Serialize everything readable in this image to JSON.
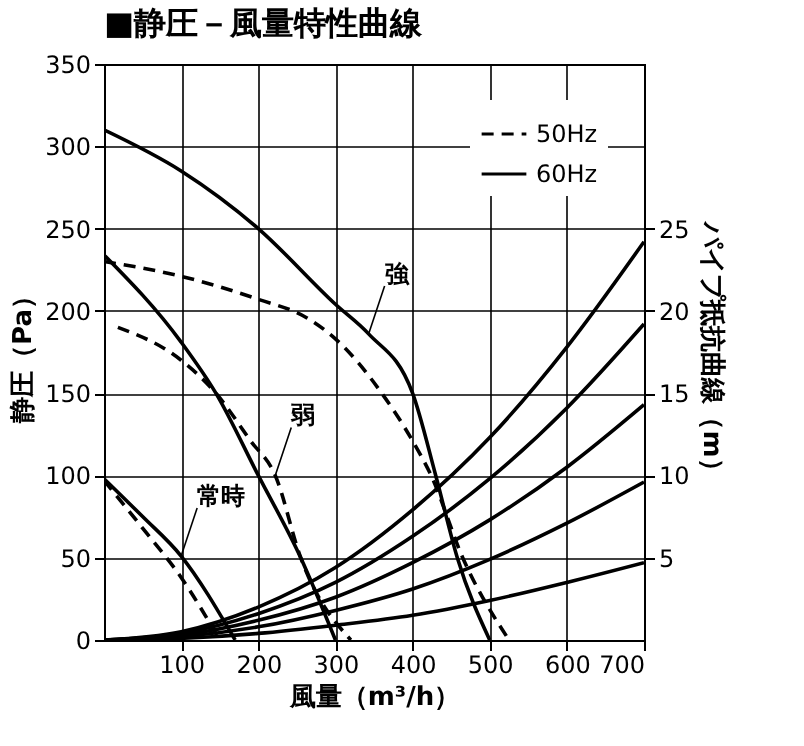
{
  "chart_data": {
    "type": "line",
    "title": "■静圧－風量特性曲線",
    "xlabel": "風量（m³/h）",
    "ylabel": "静圧（Pa）",
    "y2label": "パイプ抵抗曲線（m）",
    "xlim": [
      0,
      700
    ],
    "xticks": [
      100,
      200,
      300,
      400,
      500,
      600,
      700
    ],
    "ylim": [
      0,
      350
    ],
    "yticks": [
      0,
      50,
      100,
      150,
      200,
      250,
      300,
      350
    ],
    "y2lim": [
      0,
      35
    ],
    "y2ticks": [
      5,
      10,
      15,
      20,
      25
    ],
    "grid": true,
    "legend": "top right",
    "marker": "none",
    "series": [
      {
        "name": "50Hz",
        "color": "#000000",
        "line_style": "dashed",
        "x": [
          0,
          100,
          200,
          262,
          300,
          360,
          400,
          424,
          465,
          525
        ],
        "values": [
          230,
          221,
          207,
          196,
          183,
          150,
          121,
          100,
          50,
          0
        ]
      },
      {
        "name": "60Hz",
        "color": "#000000",
        "line_style": "solid",
        "x": [
          0,
          100,
          200,
          300,
          343,
          400,
          430,
          458,
          500
        ],
        "values": [
          310,
          285,
          250,
          204,
          186,
          150,
          100,
          50,
          0
        ]
      },
      {
        "color": "#000000",
        "line_style": "solid",
        "x": [
          0,
          100,
          145,
          200,
          255,
          300
        ],
        "values": [
          234,
          181,
          150,
          100,
          50,
          0
        ]
      },
      {
        "color": "#000000",
        "line_style": "dashed",
        "x": [
          18,
          100,
          145,
          190,
          222,
          255,
          320
        ],
        "values": [
          190,
          170,
          150,
          121,
          100,
          50,
          0
        ]
      },
      {
        "color": "#000000",
        "line_style": "solid",
        "x": [
          0,
          50,
          100,
          170
        ],
        "values": [
          98,
          75,
          51,
          0
        ]
      },
      {
        "color": "#000000",
        "line_style": "dashed",
        "x": [
          0,
          50,
          100,
          150
        ],
        "values": [
          97,
          68,
          38,
          0
        ]
      },
      {
        "color": "#000000",
        "line_style": "solid",
        "axis": "y2",
        "x": [
          0,
          100,
          200,
          300,
          400,
          500,
          600,
          700
        ],
        "values": [
          0,
          0.5,
          2,
          4.4,
          7.9,
          12.3,
          17.8,
          24.2
        ]
      },
      {
        "color": "#000000",
        "line_style": "solid",
        "axis": "y2",
        "x": [
          0,
          100,
          200,
          300,
          400,
          500,
          600,
          700
        ],
        "values": [
          0,
          0.4,
          1.6,
          3.5,
          6.3,
          9.8,
          14.1,
          19.2
        ]
      },
      {
        "color": "#000000",
        "line_style": "solid",
        "axis": "y2",
        "x": [
          0,
          100,
          200,
          300,
          400,
          500,
          600,
          700
        ],
        "values": [
          0,
          0.3,
          1.2,
          2.6,
          4.7,
          7.3,
          10.5,
          14.3
        ]
      },
      {
        "color": "#000000",
        "line_style": "solid",
        "axis": "y2",
        "x": [
          0,
          100,
          200,
          300,
          400,
          500,
          600,
          700
        ],
        "values": [
          0,
          0.2,
          0.8,
          1.8,
          3.1,
          4.9,
          7.1,
          9.6
        ]
      },
      {
        "color": "#000000",
        "line_style": "solid",
        "axis": "y2",
        "x": [
          0,
          100,
          200,
          300,
          400,
          500,
          600,
          700
        ],
        "values": [
          0,
          0.1,
          0.4,
          0.9,
          1.5,
          2.4,
          3.5,
          4.7
        ]
      }
    ],
    "annotations": [
      {
        "text": "強",
        "x": 343,
        "y": 186
      },
      {
        "text": "弱",
        "x": 222,
        "y": 100
      },
      {
        "text": "常時",
        "x": 100,
        "y": 51
      }
    ]
  }
}
